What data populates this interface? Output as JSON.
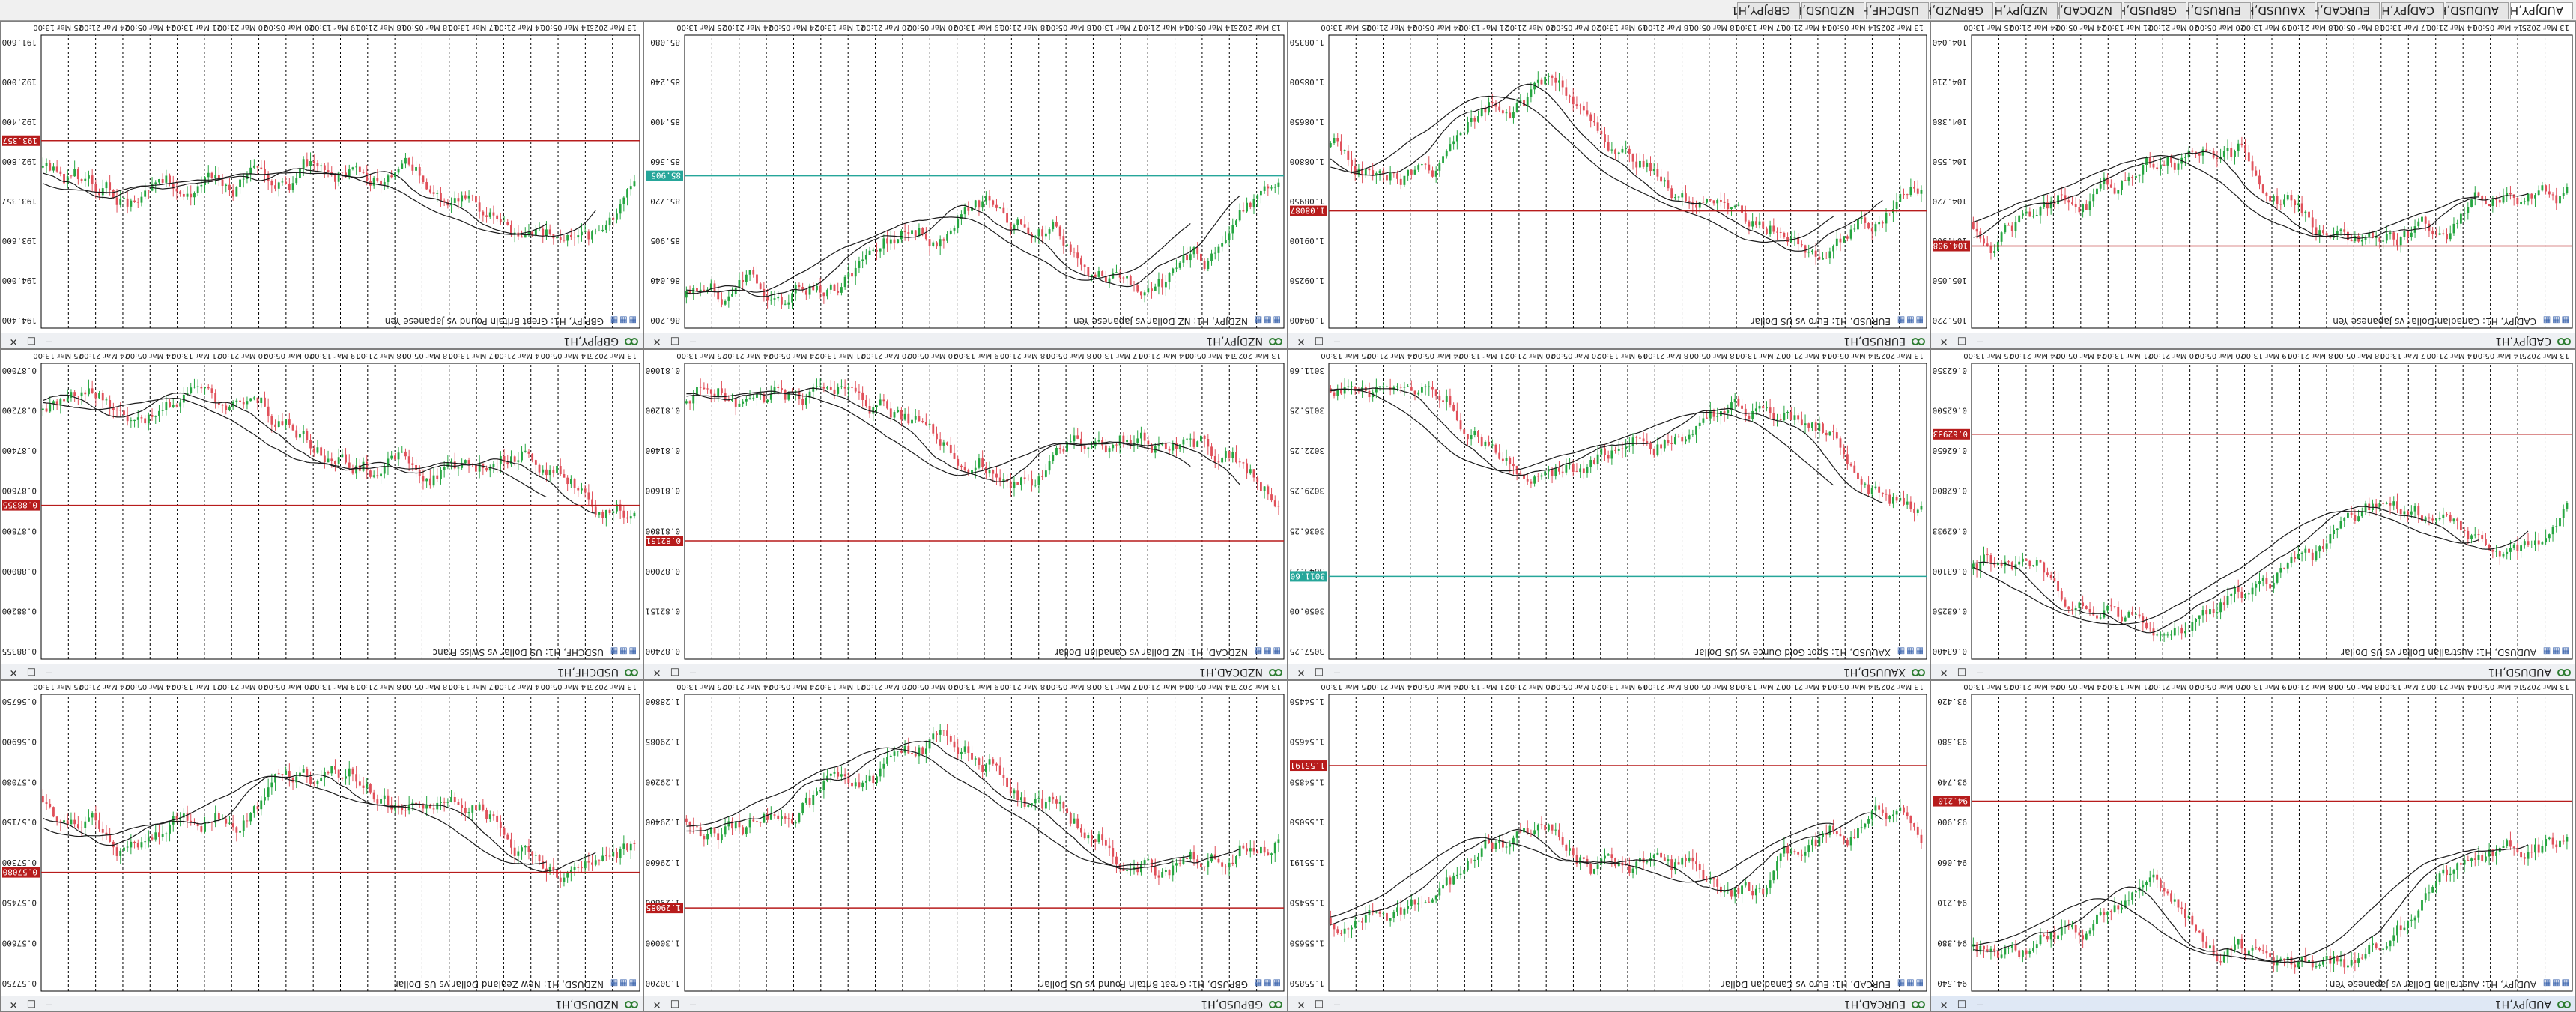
{
  "tabs": [
    "AUDJPY,H1",
    "AUDUSD,H1",
    "CADJPY,H1",
    "EURCAD,H1",
    "XAUUSD,H1",
    "EURUSD,H1",
    "GBPUSD,H1",
    "NZDCAD,H1",
    "NZDJPY,H1",
    "GBPNZD,H1",
    "USDCHF,H1",
    "NZDUSD,H1",
    "GBPJPY,H1"
  ],
  "active_tab_index": 0,
  "window_buttons": {
    "minimize": "─",
    "maximize": "□",
    "close": "✕"
  },
  "charts": [
    {
      "title": "CADJPY,H1",
      "desc": "CADJPY, H1: Canadian Dollar vs Japanese Yen",
      "price_label": "104.908",
      "price_labels": [
        "105.220",
        "105.050",
        "104.908",
        "104.720",
        "104.550",
        "104.380",
        "104.210",
        "104.040"
      ],
      "time_labels": [
        "13 Mar 2025",
        "14 Mar 05:00",
        "14 Mar 21:00",
        "17 Mar 13:00",
        "18 Mar 05:00",
        "18 Mar 21:00",
        "19 Mar 13:00",
        "20 Mar 05:00",
        "20 Mar 21:00",
        "21 Mar 13:00",
        "24 Mar 05:00",
        "24 Mar 21:00",
        "25 Mar 13:00"
      ],
      "level_color": "#b71c1c"
    },
    {
      "title": "EURUSD,H1",
      "desc": "EURUSD, H1: Euro vs US Dollar",
      "price_label": "1.08087",
      "price_labels": [
        "1.09400",
        "1.09250",
        "1.09100",
        "1.08950",
        "1.08800",
        "1.08650",
        "1.08500",
        "1.08350"
      ],
      "time_labels": [
        "13 Mar 2025",
        "14 Mar 05:00",
        "14 Mar 21:00",
        "17 Mar 13:00",
        "18 Mar 05:00",
        "18 Mar 21:00",
        "19 Mar 13:00",
        "20 Mar 05:00",
        "20 Mar 21:00",
        "21 Mar 13:00",
        "24 Mar 05:00",
        "24 Mar 21:00",
        "25 Mar 13:00"
      ],
      "level_color": "#b71c1c"
    },
    {
      "title": "NZDJPY,H1",
      "desc": "NZDJPY, H1: NZ Dollar vs Japanese Yen",
      "price_label": "85.905",
      "price_labels": [
        "86.200",
        "86.040",
        "85.905",
        "85.720",
        "85.560",
        "85.400",
        "85.240",
        "85.080"
      ],
      "time_labels": [
        "13 Mar 2025",
        "14 Mar 05:00",
        "14 Mar 21:00",
        "17 Mar 13:00",
        "18 Mar 05:00",
        "18 Mar 21:00",
        "19 Mar 13:00",
        "20 Mar 05:00",
        "20 Mar 21:00",
        "21 Mar 13:00",
        "24 Mar 05:00",
        "24 Mar 21:00",
        "25 Mar 13:00"
      ],
      "level_color": "#26a69a"
    },
    {
      "title": "GBPJPY,H1",
      "desc": "GBPJPY, H1: Great Britain Pound vs Japanese Yen",
      "price_label": "193.357",
      "price_labels": [
        "194.400",
        "194.000",
        "193.600",
        "193.357",
        "192.800",
        "192.400",
        "192.000",
        "191.600"
      ],
      "time_labels": [
        "13 Mar 2025",
        "14 Mar 05:00",
        "14 Mar 21:00",
        "17 Mar 13:00",
        "18 Mar 05:00",
        "18 Mar 21:00",
        "19 Mar 13:00",
        "20 Mar 05:00",
        "20 Mar 21:00",
        "21 Mar 13:00",
        "24 Mar 05:00",
        "24 Mar 21:00",
        "25 Mar 13:00"
      ],
      "level_color": "#b71c1c"
    },
    {
      "title": "AUDUSD,H1",
      "desc": "AUDUSD, H1: Australian Dollar vs US Dollar",
      "price_label": "0.62933",
      "price_labels": [
        "0.63400",
        "0.63250",
        "0.63100",
        "0.62933",
        "0.62800",
        "0.62650",
        "0.62500",
        "0.62350"
      ],
      "time_labels": [
        "13 Mar 2025",
        "14 Mar 05:00",
        "14 Mar 21:00",
        "17 Mar 13:00",
        "18 Mar 05:00",
        "18 Mar 21:00",
        "19 Mar 13:00",
        "20 Mar 05:00",
        "20 Mar 21:00",
        "21 Mar 13:00",
        "24 Mar 05:00",
        "24 Mar 21:00",
        "25 Mar 13:00"
      ],
      "level_color": "#b71c1c"
    },
    {
      "title": "XAUUSD,H1",
      "desc": "XAUUSD, H1: Spot Gold Ounce vs US Dollar",
      "price_label": "3011.60",
      "price_labels": [
        "3057.25",
        "3050.00",
        "3043.25",
        "3036.25",
        "3029.25",
        "3022.25",
        "3015.25",
        "3011.60"
      ],
      "time_labels": [
        "13 Mar 2025",
        "14 Mar 05:00",
        "14 Mar 21:00",
        "17 Mar 13:00",
        "18 Mar 05:00",
        "18 Mar 21:00",
        "19 Mar 13:00",
        "20 Mar 05:00",
        "20 Mar 21:00",
        "21 Mar 13:00",
        "24 Mar 05:00",
        "24 Mar 21:00",
        "25 Mar 13:00"
      ],
      "level_color": "#26a69a"
    },
    {
      "title": "NZDCAD,H1",
      "desc": "NZDCAD, H1: NZ Dollar vs Canadian Dollar",
      "price_label": "0.82151",
      "price_labels": [
        "0.82400",
        "0.82151",
        "0.82000",
        "0.81800",
        "0.81600",
        "0.81400",
        "0.81200",
        "0.81000"
      ],
      "time_labels": [
        "13 Mar 2025",
        "14 Mar 05:00",
        "14 Mar 21:00",
        "17 Mar 13:00",
        "18 Mar 05:00",
        "18 Mar 21:00",
        "19 Mar 13:00",
        "20 Mar 05:00",
        "20 Mar 21:00",
        "21 Mar 13:00",
        "24 Mar 05:00",
        "24 Mar 21:00",
        "25 Mar 13:00"
      ],
      "level_color": "#b71c1c"
    },
    {
      "title": "USDCHF,H1",
      "desc": "USDCHF, H1: US Dollar vs Swiss Franc",
      "price_label": "0.88355",
      "price_labels": [
        "0.88355",
        "0.88200",
        "0.88000",
        "0.87800",
        "0.87600",
        "0.87400",
        "0.87200",
        "0.87000"
      ],
      "time_labels": [
        "13 Mar 2025",
        "14 Mar 05:00",
        "14 Mar 21:00",
        "17 Mar 13:00",
        "18 Mar 05:00",
        "18 Mar 21:00",
        "19 Mar 13:00",
        "20 Mar 05:00",
        "20 Mar 21:00",
        "21 Mar 13:00",
        "24 Mar 05:00",
        "24 Mar 21:00",
        "25 Mar 13:00"
      ],
      "level_color": "#b71c1c"
    },
    {
      "title": "AUDJPY,H1",
      "desc": "AUDJPY, H1: Australian Dollar vs Japanese Yen",
      "price_label": "94.210",
      "price_labels": [
        "94.540",
        "94.380",
        "94.210",
        "94.060",
        "93.900",
        "93.740",
        "93.580",
        "93.420"
      ],
      "time_labels": [
        "13 Mar 2025",
        "14 Mar 05:00",
        "14 Mar 21:00",
        "17 Mar 13:00",
        "18 Mar 05:00",
        "18 Mar 21:00",
        "19 Mar 13:00",
        "20 Mar 05:00",
        "20 Mar 21:00",
        "21 Mar 13:00",
        "24 Mar 05:00",
        "24 Mar 21:00",
        "25 Mar 13:00"
      ],
      "level_color": "#b71c1c"
    },
    {
      "title": "EURCAD,H1",
      "desc": "EURCAD, H1: Euro vs Canadian Dollar",
      "price_label": "1.55191",
      "price_labels": [
        "1.55850",
        "1.55650",
        "1.55450",
        "1.55191",
        "1.55050",
        "1.54850",
        "1.54650",
        "1.54450"
      ],
      "time_labels": [
        "13 Mar 2025",
        "14 Mar 05:00",
        "14 Mar 21:00",
        "17 Mar 13:00",
        "18 Mar 05:00",
        "18 Mar 21:00",
        "19 Mar 13:00",
        "20 Mar 05:00",
        "20 Mar 21:00",
        "21 Mar 13:00",
        "24 Mar 05:00",
        "24 Mar 21:00",
        "25 Mar 13:00"
      ],
      "level_color": "#b71c1c"
    },
    {
      "title": "GBPUSD,H1",
      "desc": "GBPUSD, H1: Great Britain Pound vs US Dollar",
      "price_label": "1.29085",
      "price_labels": [
        "1.30200",
        "1.30000",
        "1.29800",
        "1.29600",
        "1.29400",
        "1.29200",
        "1.29085",
        "1.28800"
      ],
      "time_labels": [
        "13 Mar 2025",
        "14 Mar 05:00",
        "14 Mar 21:00",
        "17 Mar 13:00",
        "18 Mar 05:00",
        "18 Mar 21:00",
        "19 Mar 13:00",
        "20 Mar 05:00",
        "20 Mar 21:00",
        "21 Mar 13:00",
        "24 Mar 05:00",
        "24 Mar 21:00",
        "25 Mar 13:00"
      ],
      "level_color": "#b71c1c"
    },
    {
      "title": "NZDUSD,H1",
      "desc": "NZDUSD, H1: New Zealand Dollar vs US Dollar",
      "price_label": "0.57080",
      "price_labels": [
        "0.57750",
        "0.57600",
        "0.57450",
        "0.57300",
        "0.57150",
        "0.57080",
        "0.56900",
        "0.56750"
      ],
      "time_labels": [
        "13 Mar 2025",
        "14 Mar 05:00",
        "14 Mar 21:00",
        "17 Mar 13:00",
        "18 Mar 05:00",
        "18 Mar 21:00",
        "19 Mar 13:00",
        "20 Mar 05:00",
        "20 Mar 21:00",
        "21 Mar 13:00",
        "24 Mar 05:00",
        "24 Mar 21:00",
        "25 Mar 13:00"
      ],
      "level_color": "#b71c1c"
    }
  ],
  "colors": {
    "bull": "#26a641",
    "bear": "#e0505a",
    "ma": "#1a1a1a",
    "grid": "#000000",
    "background": "#ffffff",
    "axis_text": "#222222"
  }
}
